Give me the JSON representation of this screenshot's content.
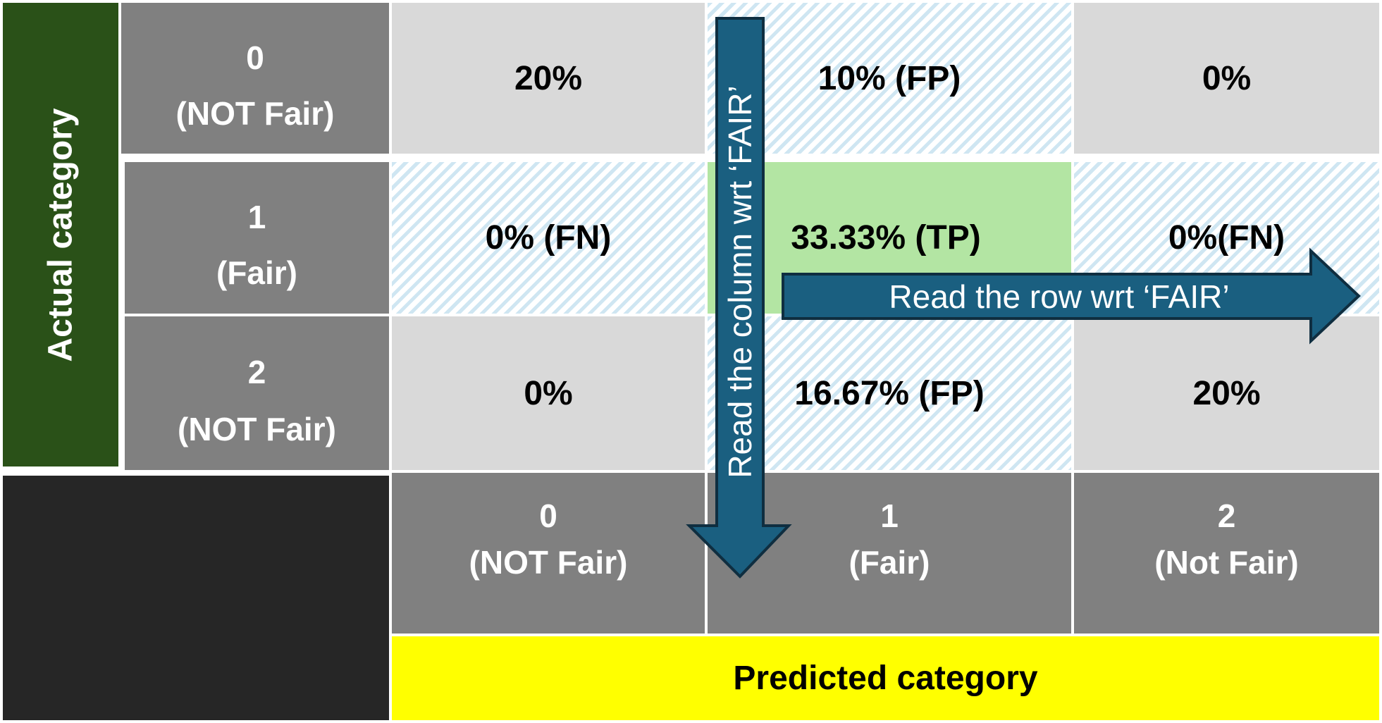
{
  "axes": {
    "actual_label": "Actual category",
    "predicted_label": "Predicted category"
  },
  "rows": [
    {
      "id": "0",
      "name": "(NOT Fair)"
    },
    {
      "id": "1",
      "name": "(Fair)"
    },
    {
      "id": "2",
      "name": "(NOT Fair)"
    }
  ],
  "columns": [
    {
      "id": "0",
      "name": "(NOT Fair)"
    },
    {
      "id": "1",
      "name": "(Fair)"
    },
    {
      "id": "2",
      "name": "(Not Fair)"
    }
  ],
  "cells": [
    [
      "20%",
      "10% (FP)",
      "0%"
    ],
    [
      "0% (FN)",
      "33.33% (TP)",
      "0%(FN)"
    ],
    [
      "0%",
      "16.67% (FP)",
      "20%"
    ]
  ],
  "arrows": {
    "column_text": "Read the column wrt ‘FAIR’",
    "row_text": "Read the row wrt  ‘FAIR’"
  },
  "colors": {
    "actual_bg": "#2a5118",
    "predicted_bg": "#ffff00",
    "tp_bg": "#b3e5a3",
    "label_bg": "#808080",
    "cell_bg": "#d9d9d9",
    "corner_bg": "#262626",
    "arrow_fill": "#1a5f80",
    "arrow_stroke": "#0f2e40"
  }
}
